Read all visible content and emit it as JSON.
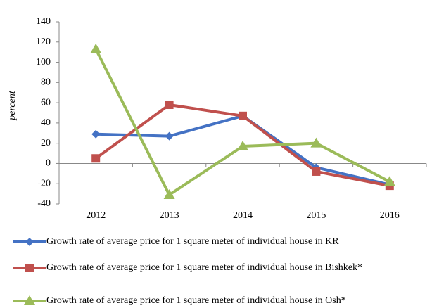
{
  "chart_data": {
    "type": "line",
    "y_label": "percent",
    "categories": [
      "2012",
      "2013",
      "2014",
      "2015",
      "2016"
    ],
    "series": [
      {
        "name": "Growth rate of average price for 1 square meter of individual house in KR",
        "color": "#4472c4",
        "marker": "diamond",
        "values": [
          29,
          27,
          47,
          -4,
          -21
        ]
      },
      {
        "name": "Growth rate of average price for 1 square meter of individual house in Bishkek*",
        "color": "#c0504d",
        "marker": "square",
        "values": [
          5,
          58,
          47,
          -8,
          -22
        ]
      },
      {
        "name": "Growth rate of average price for 1 square meter of individual house in Osh*",
        "color": "#9bbb59",
        "marker": "triangle",
        "values": [
          113,
          -31,
          17,
          20,
          -18
        ]
      }
    ],
    "ylim": [
      -40,
      140
    ],
    "yticks": [
      -40,
      -20,
      0,
      20,
      40,
      60,
      80,
      100,
      120,
      140
    ],
    "legend": "bottom"
  }
}
